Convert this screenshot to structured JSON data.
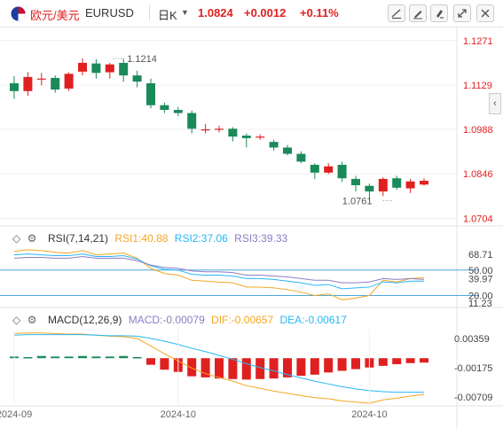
{
  "toolbar": {
    "symbol_cn": "欧元/美元",
    "symbol": "EURUSD",
    "period": "日K",
    "price": "1.0824",
    "change": "+0.0012",
    "change_pct": "+0.11%",
    "icons": [
      "line-tool-icon",
      "pen-tool-icon",
      "marker-tool-icon",
      "expand-icon",
      "close-icon"
    ]
  },
  "colors": {
    "up": "#e02020",
    "down": "#1a8a5a",
    "rsi1": "#f5a623",
    "rsi2": "#29b6f6",
    "rsi3": "#8e7cc3",
    "macd": "#8e7cc3",
    "dif": "#f5a623",
    "dea": "#29b6f6",
    "level_line": "#4aa8e0"
  },
  "chart_data": [
    {
      "type": "candlestick",
      "y_ticks": [
        "1.1271",
        "1.1129",
        "1.0988",
        "1.0846",
        "1.0704"
      ],
      "ylim": [
        1.068,
        1.131
      ],
      "annotations": [
        {
          "label": "1.1214",
          "value": 1.1214,
          "index": 8
        },
        {
          "label": "1.0761",
          "value": 1.0761,
          "index": 27
        }
      ],
      "candles": [
        {
          "o": 1.1135,
          "h": 1.1158,
          "l": 1.1085,
          "c": 1.111
        },
        {
          "o": 1.111,
          "h": 1.117,
          "l": 1.1095,
          "c": 1.1155
        },
        {
          "o": 1.115,
          "h": 1.1168,
          "l": 1.1128,
          "c": 1.115
        },
        {
          "o": 1.1152,
          "h": 1.116,
          "l": 1.1105,
          "c": 1.1115
        },
        {
          "o": 1.1118,
          "h": 1.117,
          "l": 1.111,
          "c": 1.1165
        },
        {
          "o": 1.1172,
          "h": 1.1214,
          "l": 1.116,
          "c": 1.12
        },
        {
          "o": 1.1198,
          "h": 1.1212,
          "l": 1.115,
          "c": 1.1168
        },
        {
          "o": 1.117,
          "h": 1.12,
          "l": 1.115,
          "c": 1.1195
        },
        {
          "o": 1.12,
          "h": 1.1214,
          "l": 1.114,
          "c": 1.116
        },
        {
          "o": 1.116,
          "h": 1.1175,
          "l": 1.1122,
          "c": 1.114
        },
        {
          "o": 1.1135,
          "h": 1.115,
          "l": 1.1055,
          "c": 1.1065
        },
        {
          "o": 1.1065,
          "h": 1.1073,
          "l": 1.104,
          "c": 1.105
        },
        {
          "o": 1.105,
          "h": 1.106,
          "l": 1.103,
          "c": 1.104
        },
        {
          "o": 1.104,
          "h": 1.1048,
          "l": 1.0975,
          "c": 1.099
        },
        {
          "o": 1.0988,
          "h": 1.1005,
          "l": 1.0975,
          "c": 1.0988
        },
        {
          "o": 1.099,
          "h": 1.1,
          "l": 1.0978,
          "c": 1.099
        },
        {
          "o": 1.099,
          "h": 1.0995,
          "l": 1.095,
          "c": 1.0965
        },
        {
          "o": 1.0968,
          "h": 1.0975,
          "l": 1.093,
          "c": 1.096
        },
        {
          "o": 1.0965,
          "h": 1.0972,
          "l": 1.0955,
          "c": 1.0965
        },
        {
          "o": 1.0948,
          "h": 1.0955,
          "l": 1.092,
          "c": 1.093
        },
        {
          "o": 1.093,
          "h": 1.0938,
          "l": 1.0905,
          "c": 1.091
        },
        {
          "o": 1.091,
          "h": 1.0918,
          "l": 1.088,
          "c": 1.0885
        },
        {
          "o": 1.0875,
          "h": 1.088,
          "l": 1.083,
          "c": 1.085
        },
        {
          "o": 1.085,
          "h": 1.088,
          "l": 1.0845,
          "c": 1.087
        },
        {
          "o": 1.0875,
          "h": 1.0885,
          "l": 1.082,
          "c": 1.0832
        },
        {
          "o": 1.083,
          "h": 1.084,
          "l": 1.079,
          "c": 1.081
        },
        {
          "o": 1.0808,
          "h": 1.0815,
          "l": 1.0761,
          "c": 1.079
        },
        {
          "o": 1.079,
          "h": 1.0835,
          "l": 1.0775,
          "c": 1.083
        },
        {
          "o": 1.0832,
          "h": 1.084,
          "l": 1.0795,
          "c": 1.0802
        },
        {
          "o": 1.08,
          "h": 1.083,
          "l": 1.0785,
          "c": 1.0822
        },
        {
          "o": 1.0812,
          "h": 1.0832,
          "l": 1.0808,
          "c": 1.0824
        }
      ]
    },
    {
      "type": "line",
      "label": "RSI(7,14,21)",
      "legend": [
        "RSI1:40.88",
        "RSI2:37.06",
        "RSI3:39.33"
      ],
      "y_ticks": [
        "68.71",
        "50.00",
        "39.97",
        "20.00",
        "11.23"
      ],
      "levels": [
        50,
        20
      ],
      "ylim": [
        8,
        78
      ],
      "series": [
        {
          "name": "RSI1",
          "values": [
            72,
            74,
            73,
            71,
            70,
            73,
            68,
            69,
            70,
            64,
            52,
            46,
            44,
            38,
            37,
            36,
            35,
            30,
            30,
            29,
            27,
            24,
            20,
            22,
            15,
            17,
            20,
            38,
            36,
            40,
            41
          ]
        },
        {
          "name": "RSI2",
          "values": [
            68,
            69,
            68,
            67,
            67,
            69,
            66,
            66,
            67,
            63,
            55,
            51,
            50,
            45,
            44,
            44,
            43,
            40,
            40,
            39,
            37,
            35,
            32,
            33,
            28,
            29,
            30,
            36,
            35,
            37,
            37
          ]
        },
        {
          "name": "RSI3",
          "values": [
            64,
            65,
            65,
            64,
            64,
            66,
            64,
            64,
            64,
            61,
            56,
            53,
            52,
            49,
            48,
            48,
            47,
            44,
            44,
            43,
            42,
            40,
            38,
            38,
            35,
            35,
            36,
            40,
            39,
            40,
            39
          ]
        }
      ]
    },
    {
      "type": "bar+line",
      "label": "MACD(12,26,9)",
      "legend": [
        "MACD:-0.00079",
        "DIF:-0.00657",
        "DEA:-0.00617"
      ],
      "y_ticks": [
        "0.00359",
        "-0.00175",
        "-0.00709"
      ],
      "ylim": [
        -0.0082,
        0.0052
      ],
      "x_ticks": [
        {
          "label": "2024-09",
          "index": 0
        },
        {
          "label": "2024-10",
          "index": 12
        },
        {
          "label": "2024-10",
          "index": 26
        }
      ],
      "bars": [
        0.0003,
        0.0002,
        0.0004,
        0.0003,
        0.0003,
        0.0004,
        0.0003,
        0.0003,
        0.0004,
        0.0002,
        -0.0012,
        -0.0021,
        -0.0025,
        -0.0033,
        -0.0035,
        -0.0037,
        -0.0038,
        -0.0039,
        -0.0038,
        -0.0037,
        -0.0035,
        -0.0032,
        -0.003,
        -0.0026,
        -0.0023,
        -0.002,
        -0.0017,
        -0.0014,
        -0.0011,
        -0.0009,
        -0.0008
      ],
      "series": [
        {
          "name": "DIF",
          "values": [
            0.0045,
            0.0046,
            0.0046,
            0.0045,
            0.0044,
            0.0044,
            0.0042,
            0.004,
            0.0039,
            0.0036,
            0.0022,
            0.0008,
            -0.0005,
            -0.0018,
            -0.0028,
            -0.0035,
            -0.0042,
            -0.005,
            -0.0055,
            -0.006,
            -0.0064,
            -0.0068,
            -0.0072,
            -0.0074,
            -0.0078,
            -0.008,
            -0.0082,
            -0.0076,
            -0.0073,
            -0.0069,
            -0.0066
          ]
        },
        {
          "name": "DEA",
          "values": [
            0.0042,
            0.0043,
            0.0043,
            0.0043,
            0.0043,
            0.0043,
            0.0042,
            0.0041,
            0.0041,
            0.004,
            0.0036,
            0.0031,
            0.0025,
            0.0018,
            0.0012,
            0.0005,
            -0.0002,
            -0.001,
            -0.0017,
            -0.0023,
            -0.003,
            -0.0036,
            -0.0042,
            -0.0047,
            -0.0052,
            -0.0056,
            -0.0059,
            -0.0061,
            -0.0062,
            -0.0062,
            -0.0062
          ]
        }
      ]
    }
  ]
}
